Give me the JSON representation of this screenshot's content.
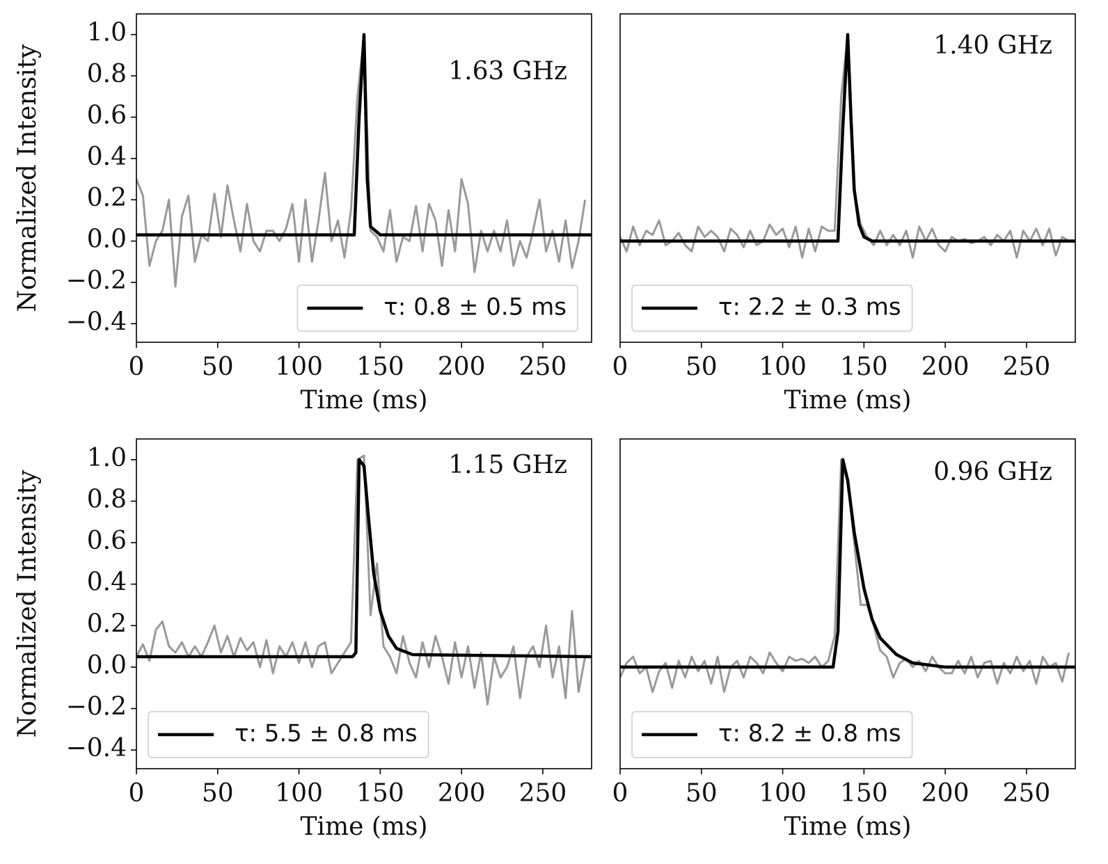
{
  "chart_data": [
    {
      "type": "line",
      "annotation": "1.63 GHz",
      "xlabel": "Time (ms)",
      "ylabel": "Normalized Intensity",
      "legend": "lower right",
      "xlim": [
        0,
        280
      ],
      "xticks": [
        0,
        50,
        100,
        150,
        200,
        250
      ],
      "ylim": [
        -0.49,
        1.1
      ],
      "yticks": [
        {
          "value": -0.4,
          "label": "−0.4"
        },
        {
          "value": -0.2,
          "label": "−0.2"
        },
        {
          "value": 0,
          "label": "0.0"
        },
        0.2,
        0.4,
        0.6,
        0.8,
        {
          "value": 1,
          "label": "1.0"
        }
      ],
      "x": [
        0,
        4,
        8,
        12,
        16,
        20,
        24,
        28,
        32,
        36,
        40,
        44,
        48,
        52,
        56,
        60,
        64,
        68,
        72,
        76,
        80,
        84,
        88,
        92,
        96,
        100,
        104,
        108,
        112,
        116,
        120,
        124,
        128,
        132,
        136,
        140,
        144,
        148,
        152,
        156,
        160,
        164,
        168,
        172,
        176,
        180,
        184,
        188,
        192,
        196,
        200,
        204,
        208,
        212,
        216,
        220,
        224,
        228,
        232,
        236,
        240,
        244,
        248,
        252,
        256,
        260,
        264,
        268,
        272,
        276
      ],
      "series": [
        {
          "color": "#999999",
          "values": [
            0.3,
            0.22,
            -0.12,
            0.0,
            0.05,
            0.2,
            -0.22,
            0.12,
            0.22,
            -0.1,
            0.03,
            0.0,
            0.23,
            0.02,
            0.27,
            0.1,
            -0.05,
            0.18,
            0.0,
            -0.05,
            0.05,
            0.05,
            0.0,
            0.06,
            0.18,
            -0.1,
            0.2,
            -0.1,
            0.1,
            0.33,
            0.0,
            0.1,
            -0.08,
            0.15,
            0.7,
            1.0,
            0.05,
            0.02,
            -0.05,
            0.15,
            -0.1,
            0.02,
            0.0,
            0.17,
            -0.05,
            0.18,
            0.1,
            -0.12,
            0.15,
            -0.05,
            0.3,
            0.18,
            -0.15,
            0.05,
            -0.05,
            0.05,
            -0.05,
            0.1,
            -0.12,
            0.0,
            -0.08,
            0.05,
            0.2,
            -0.05,
            0.05,
            -0.1,
            0.1,
            -0.13,
            0.0,
            0.2
          ]
        },
        {
          "name": "τ: 0.8 ± 0.5 ms",
          "color": "#000000",
          "x": [
            0,
            134,
            137,
            140,
            142,
            144,
            150,
            280
          ],
          "values": [
            0.03,
            0.03,
            0.6,
            1.0,
            0.3,
            0.07,
            0.03,
            0.03
          ]
        }
      ]
    },
    {
      "type": "line",
      "annotation": "1.40 GHz",
      "xlabel": "Time (ms)",
      "legend": "lower left",
      "xlim": [
        0,
        280
      ],
      "xticks": [
        0,
        50,
        100,
        150,
        200,
        250
      ],
      "ylim": [
        -0.49,
        1.1
      ],
      "x": [
        0,
        4,
        8,
        12,
        16,
        20,
        24,
        28,
        32,
        36,
        40,
        44,
        48,
        52,
        56,
        60,
        64,
        68,
        72,
        76,
        80,
        84,
        88,
        92,
        96,
        100,
        104,
        108,
        112,
        116,
        120,
        124,
        128,
        132,
        136,
        140,
        144,
        148,
        152,
        156,
        160,
        164,
        168,
        172,
        176,
        180,
        184,
        188,
        192,
        196,
        200,
        204,
        208,
        212,
        216,
        220,
        224,
        228,
        232,
        236,
        240,
        244,
        248,
        252,
        256,
        260,
        264,
        268,
        272,
        276
      ],
      "series": [
        {
          "color": "#999999",
          "values": [
            0.02,
            -0.05,
            0.07,
            -0.02,
            0.05,
            0.03,
            0.1,
            -0.02,
            0.0,
            0.04,
            -0.02,
            -0.05,
            0.07,
            0.02,
            0.05,
            0.02,
            -0.05,
            0.06,
            0.03,
            -0.03,
            0.05,
            -0.02,
            0.0,
            0.08,
            0.03,
            0.06,
            -0.03,
            0.07,
            -0.08,
            0.06,
            -0.05,
            0.07,
            0.05,
            0.05,
            0.7,
            1.0,
            0.25,
            0.08,
            0.02,
            -0.02,
            0.05,
            -0.02,
            0.03,
            -0.02,
            0.05,
            -0.08,
            0.07,
            0.0,
            0.06,
            -0.02,
            -0.05,
            0.02,
            0.0,
            0.01,
            -0.01,
            0.0,
            0.02,
            -0.02,
            0.03,
            0.0,
            0.05,
            -0.08,
            0.05,
            0.0,
            0.06,
            -0.02,
            0.06,
            -0.07,
            0.02,
            0.0
          ]
        },
        {
          "name": "τ: 2.2 ± 0.3 ms",
          "color": "#000000",
          "x": [
            0,
            134,
            137,
            140,
            142,
            144,
            147,
            150,
            155,
            280
          ],
          "values": [
            0,
            0,
            0.55,
            1.0,
            0.6,
            0.25,
            0.08,
            0.02,
            0,
            0
          ]
        }
      ]
    },
    {
      "type": "line",
      "annotation": "1.15 GHz",
      "xlabel": "Time (ms)",
      "ylabel": "Normalized Intensity",
      "legend": "lower left",
      "xlim": [
        0,
        280
      ],
      "xticks": [
        0,
        50,
        100,
        150,
        200,
        250
      ],
      "ylim": [
        -0.49,
        1.1
      ],
      "yticks": [
        {
          "value": -0.4,
          "label": "−0.4"
        },
        {
          "value": -0.2,
          "label": "−0.2"
        },
        {
          "value": 0,
          "label": "0.0"
        },
        0.2,
        0.4,
        0.6,
        0.8,
        {
          "value": 1,
          "label": "1.0"
        }
      ],
      "x": [
        0,
        4,
        8,
        12,
        16,
        20,
        24,
        28,
        32,
        36,
        40,
        44,
        48,
        52,
        56,
        60,
        64,
        68,
        72,
        76,
        80,
        84,
        88,
        92,
        96,
        100,
        104,
        108,
        112,
        116,
        120,
        124,
        128,
        132,
        136,
        140,
        144,
        148,
        152,
        156,
        160,
        164,
        168,
        172,
        176,
        180,
        184,
        188,
        192,
        196,
        200,
        204,
        208,
        212,
        216,
        220,
        224,
        228,
        232,
        236,
        240,
        244,
        248,
        252,
        256,
        260,
        264,
        268,
        272,
        276
      ],
      "series": [
        {
          "color": "#999999",
          "values": [
            0.05,
            0.11,
            0.03,
            0.18,
            0.22,
            0.1,
            0.07,
            0.12,
            0.05,
            0.1,
            0.05,
            0.12,
            0.2,
            0.07,
            0.15,
            0.05,
            0.14,
            0.08,
            0.12,
            0.0,
            0.13,
            -0.03,
            0.1,
            0.05,
            0.12,
            0.02,
            0.12,
            0.0,
            0.1,
            0.12,
            -0.03,
            0.02,
            0.07,
            0.12,
            1.0,
            1.02,
            0.25,
            0.5,
            0.1,
            0.05,
            -0.03,
            0.15,
            0.02,
            -0.05,
            0.12,
            0.0,
            0.15,
            0.05,
            -0.08,
            0.12,
            -0.05,
            0.1,
            -0.1,
            0.07,
            -0.18,
            0.05,
            -0.05,
            0.0,
            0.1,
            -0.15,
            0.05,
            0.1,
            0.0,
            0.2,
            -0.05,
            0.1,
            -0.15,
            0.27,
            -0.12,
            0.05
          ]
        },
        {
          "name": "τ: 5.5 ± 0.8 ms",
          "color": "#000000",
          "x": [
            0,
            133,
            135,
            137,
            140,
            143,
            146,
            150,
            155,
            160,
            170,
            280
          ],
          "values": [
            0.05,
            0.05,
            0.07,
            1.0,
            0.97,
            0.7,
            0.45,
            0.27,
            0.15,
            0.09,
            0.06,
            0.05
          ]
        }
      ]
    },
    {
      "type": "line",
      "annotation": "0.96 GHz",
      "xlabel": "Time (ms)",
      "legend": "lower left",
      "xlim": [
        0,
        280
      ],
      "xticks": [
        0,
        50,
        100,
        150,
        200,
        250
      ],
      "ylim": [
        -0.49,
        1.1
      ],
      "x": [
        0,
        4,
        8,
        12,
        16,
        20,
        24,
        28,
        32,
        36,
        40,
        44,
        48,
        52,
        56,
        60,
        64,
        68,
        72,
        76,
        80,
        84,
        88,
        92,
        96,
        100,
        104,
        108,
        112,
        116,
        120,
        124,
        128,
        132,
        136,
        140,
        144,
        148,
        152,
        156,
        160,
        164,
        168,
        172,
        176,
        180,
        184,
        188,
        192,
        196,
        200,
        204,
        208,
        212,
        216,
        220,
        224,
        228,
        232,
        236,
        240,
        244,
        248,
        252,
        256,
        260,
        264,
        268,
        272,
        276
      ],
      "series": [
        {
          "color": "#999999",
          "values": [
            -0.05,
            0.02,
            0.05,
            -0.03,
            0.0,
            -0.12,
            -0.02,
            0.02,
            -0.1,
            0.03,
            -0.05,
            0.05,
            -0.02,
            0.03,
            -0.08,
            0.05,
            -0.12,
            0.0,
            0.03,
            -0.05,
            0.05,
            0.02,
            -0.03,
            0.07,
            0.02,
            -0.02,
            0.05,
            0.03,
            0.04,
            0.02,
            0.05,
            0.0,
            0.03,
            0.15,
            1.0,
            0.9,
            0.6,
            0.3,
            0.3,
            0.2,
            0.08,
            0.05,
            -0.05,
            0.02,
            0.04,
            0.0,
            0.03,
            -0.02,
            0.05,
            0.0,
            -0.03,
            -0.03,
            0.03,
            -0.03,
            0.05,
            -0.05,
            0.02,
            0.03,
            -0.08,
            0.02,
            -0.03,
            0.05,
            -0.02,
            0.03,
            -0.08,
            0.05,
            0.0,
            0.02,
            -0.07,
            0.07
          ]
        },
        {
          "name": "τ: 8.2 ± 0.8 ms",
          "color": "#000000",
          "x": [
            0,
            131,
            134,
            137,
            140,
            144,
            150,
            155,
            160,
            170,
            180,
            200,
            280
          ],
          "values": [
            0,
            0,
            0.17,
            1.0,
            0.9,
            0.65,
            0.38,
            0.23,
            0.14,
            0.06,
            0.02,
            0,
            0
          ]
        }
      ]
    }
  ]
}
